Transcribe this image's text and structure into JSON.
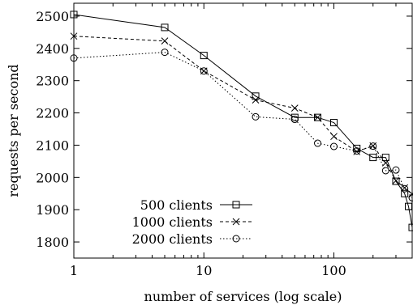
{
  "chart_data": {
    "type": "line",
    "xlabel": "number of services (log scale)",
    "ylabel": "requests per second",
    "x_scale": "log",
    "xlim": [
      1,
      400
    ],
    "ylim": [
      1750,
      2540
    ],
    "x_ticks": [
      1,
      10,
      100
    ],
    "x_tick_labels": [
      "1",
      "10",
      "100"
    ],
    "y_ticks": [
      1800,
      1900,
      2000,
      2100,
      2200,
      2300,
      2400,
      2500
    ],
    "y_tick_labels": [
      "1800",
      "1900",
      "2000",
      "2100",
      "2200",
      "2300",
      "2400",
      "2500"
    ],
    "grid": false,
    "legend_position": "bottom-left",
    "series": [
      {
        "name": "500 clients",
        "line_style": "solid",
        "marker": "square",
        "x": [
          1,
          5,
          10,
          25,
          50,
          75,
          100,
          150,
          200,
          250,
          300,
          350,
          375,
          400
        ],
        "y": [
          2505,
          2465,
          2378,
          2252,
          2186,
          2186,
          2170,
          2090,
          2062,
          2062,
          1988,
          1950,
          1910,
          1845
        ]
      },
      {
        "name": "1000 clients",
        "line_style": "dashed",
        "marker": "x",
        "x": [
          1,
          5,
          10,
          25,
          50,
          75,
          100,
          150,
          200,
          250,
          300,
          350,
          400
        ],
        "y": [
          2438,
          2423,
          2330,
          2240,
          2215,
          2186,
          2127,
          2080,
          2098,
          2045,
          1990,
          1968,
          1948
        ]
      },
      {
        "name": "2000 clients",
        "line_style": "dotted",
        "marker": "circle",
        "x": [
          1,
          5,
          10,
          25,
          50,
          75,
          100,
          150,
          200,
          250,
          300,
          350,
          400
        ],
        "y": [
          2370,
          2388,
          2330,
          2188,
          2180,
          2106,
          2096,
          2082,
          2097,
          2021,
          2023,
          1965,
          1937
        ]
      }
    ]
  }
}
